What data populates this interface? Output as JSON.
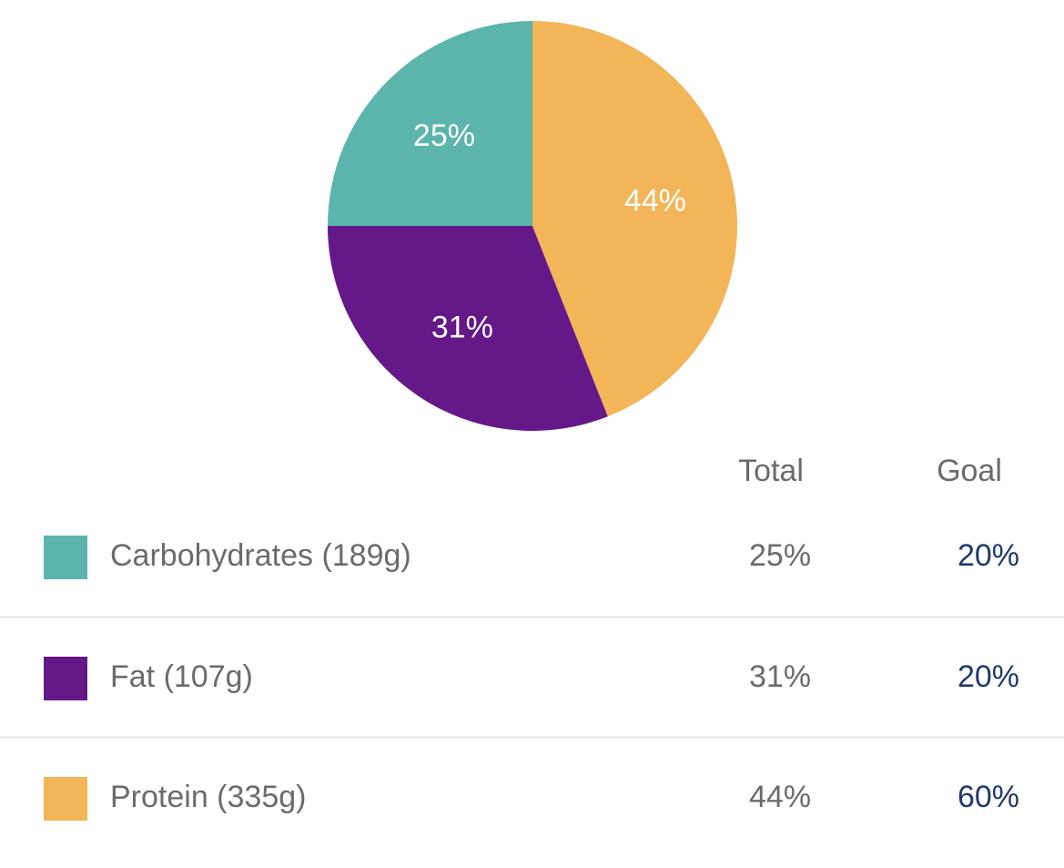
{
  "chart_data": {
    "type": "pie",
    "categories": [
      "Carbohydrates (189g)",
      "Fat (107g)",
      "Protein (335g)"
    ],
    "values": [
      25,
      31,
      44
    ],
    "value_labels": [
      "25%",
      "31%",
      "44%"
    ],
    "colors": [
      "#5bb5ad",
      "#651887",
      "#f2b558"
    ]
  },
  "table": {
    "headers": [
      "Total",
      "Goal"
    ],
    "goals": [
      "20%",
      "20%",
      "60%"
    ]
  }
}
